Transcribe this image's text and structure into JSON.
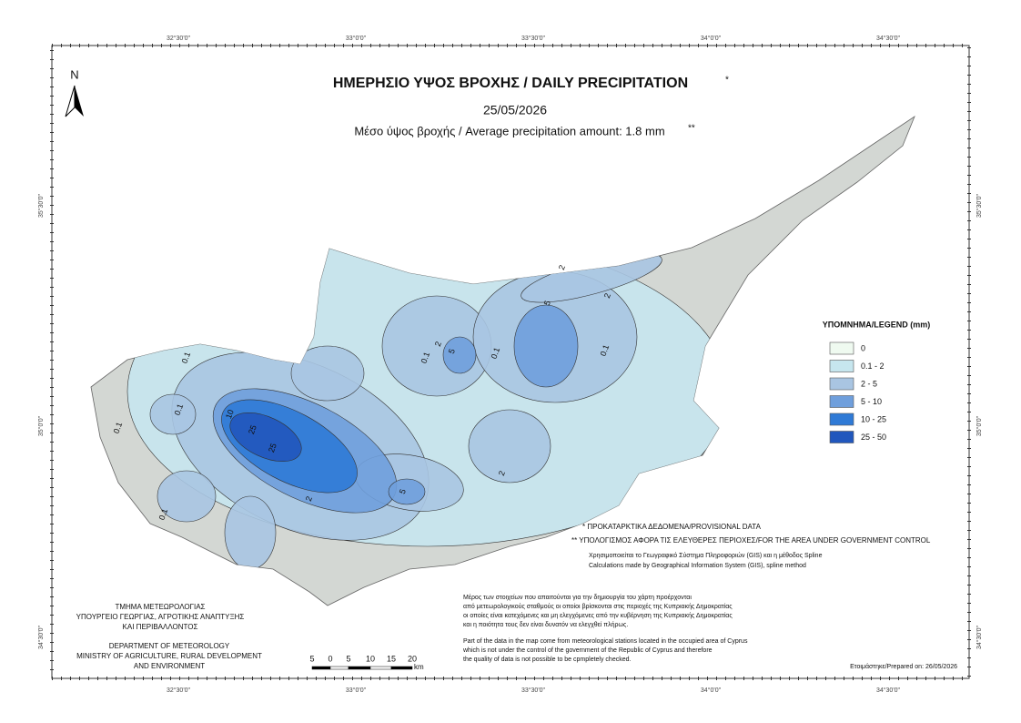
{
  "header": {
    "title": "ΗΜΕΡΗΣΙΟ ΥΨΟΣ ΒΡΟΧΗΣ / DAILY PRECIPITATION",
    "title_note": "*",
    "date": "25/05/2026",
    "subtitle": "Μέσο ύψος βροχής / Average precipitation amount: 1.8 mm",
    "subtitle_note": "**"
  },
  "north": "N",
  "graticule": {
    "top": [
      "32°30'0\"",
      "33°0'0\"",
      "33°30'0\"",
      "34°0'0\"",
      "34°30'0\""
    ],
    "bottom": [
      "32°30'0\"",
      "33°0'0\"",
      "33°30'0\"",
      "34°0'0\"",
      "34°30'0\""
    ],
    "left": [
      "35°30'0\"",
      "35°0'0\"",
      "34°30'0\""
    ],
    "right": [
      "35°30'0\"",
      "35°0'0\"",
      "34°30'0\""
    ]
  },
  "legend": {
    "title": "ΥΠΟΜΝΗΜΑ/LEGEND (mm)",
    "items": [
      {
        "label": "0",
        "color": "#effaf0"
      },
      {
        "label": "0.1 - 2",
        "color": "#c6e6ee"
      },
      {
        "label": "2 - 5",
        "color": "#a9c5e2"
      },
      {
        "label": "5 - 10",
        "color": "#6f9fdc"
      },
      {
        "label": "10 - 25",
        "color": "#2f7ad6"
      },
      {
        "label": "25 - 50",
        "color": "#2157bd"
      }
    ]
  },
  "contour_labels": [
    "0.1",
    "0.1",
    "0.1",
    "0.1",
    "10",
    "25",
    "25",
    "2",
    "5",
    "2",
    "0.1",
    "2",
    "5",
    "0.1",
    "5",
    "2",
    "0.1",
    "2"
  ],
  "notes": {
    "provisional": "* ΠΡΟΚΑΤΑΡΚΤΙΚΑ ΔΕΔΟΜΕΝΑ/PROVISIONAL DATA",
    "area": "** ΥΠΟΛΟΓΙΣΜΟΣ ΑΦΟΡΑ ΤΙΣ ΕΛΕΥΘΕΡΕΣ ΠΕΡΙΟΧΕΣ/FOR THE AREA UNDER GOVERNMENT CONTROL",
    "method": [
      "Χρησιμοποιείται το Γεωγραφικό Σύστημα Πληροφοριών (GIS) και η μέθοδος Spline",
      "Calculations made by Geographical Information System (GIS), spline method"
    ],
    "greek_disclaimer": [
      "Μέρος των στοιχείων που απαιτούνται για την δημιουργία του χάρτη προέρχονται",
      "από μετεωρολογικούς σταθμούς οι οποίοι βρίσκονται στις περιοχές της Κυπριακής Δημοκρατίας",
      "οι οποίες είναι κατεχόμενες και μη ελεγχόμενες από την κυβέρνηση της Κυπριακής Δημοκρατίας",
      "και η ποιότητα τους δεν είναι δυνατόν να ελεγχθεί πλήρως."
    ],
    "english_disclaimer": [
      "Part of the data in the map come from meteorological stations located in the occupied area of Cyprus",
      "which is not under the control of the government of the Republic of Cyprus and therefore",
      "the quality of data is not possible to be cpmpletely checked."
    ],
    "prepared": "Ετοιμάστηκε/Prepared on: 26/05/2026"
  },
  "department": {
    "greek": [
      "ΤΜΗΜΑ ΜΕΤΕΩΡΟΛΟΓΙΑΣ",
      "ΥΠΟΥΡΓΕΙΟ ΓΕΩΡΓΙΑΣ, ΑΓΡΟΤΙΚΗΣ ΑΝΑΠΤΥΞΗΣ",
      "ΚΑΙ ΠΕΡΙΒΑΛΛΟΝΤΟΣ"
    ],
    "english": [
      "DEPARTMENT OF METEOROLOGY",
      "MINISTRY OF AGRICULTURE, RURAL DEVELOPMENT",
      "AND ENVIRONMENT"
    ]
  },
  "scale": {
    "labels": [
      "5",
      "0",
      "5",
      "10",
      "15",
      "20"
    ],
    "unit": "km"
  }
}
